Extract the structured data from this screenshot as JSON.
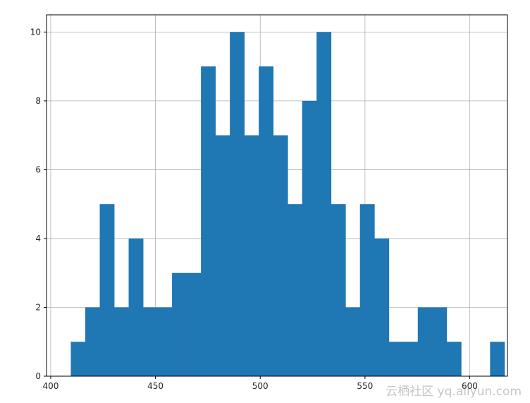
{
  "chart_data": {
    "type": "bar",
    "title": "",
    "xlabel": "",
    "ylabel": "",
    "xlim": [
      398,
      618
    ],
    "ylim": [
      0,
      10.5
    ],
    "grid": true,
    "x_ticks": [
      400,
      450,
      500,
      550,
      600
    ],
    "y_ticks": [
      0,
      2,
      4,
      6,
      8,
      10
    ],
    "bin_edges": [
      409.6,
      416.5,
      423.4,
      430.3,
      437.2,
      444.1,
      451.0,
      457.9,
      464.8,
      471.7,
      478.6,
      485.5,
      492.4,
      499.3,
      506.2,
      513.1,
      520.0,
      526.9,
      533.8,
      540.7,
      547.6,
      554.5,
      561.4,
      568.3,
      575.2,
      582.1,
      589.0,
      595.9,
      602.8,
      609.7,
      616.6
    ],
    "values": [
      1,
      2,
      5,
      2,
      4,
      2,
      2,
      3,
      3,
      9,
      7,
      10,
      7,
      9,
      7,
      5,
      8,
      10,
      5,
      2,
      5,
      4,
      1,
      1,
      2,
      2,
      1,
      0,
      0,
      1
    ],
    "color": "#1f77b4"
  },
  "watermark": "云栖社区 yq.aliyun.com"
}
